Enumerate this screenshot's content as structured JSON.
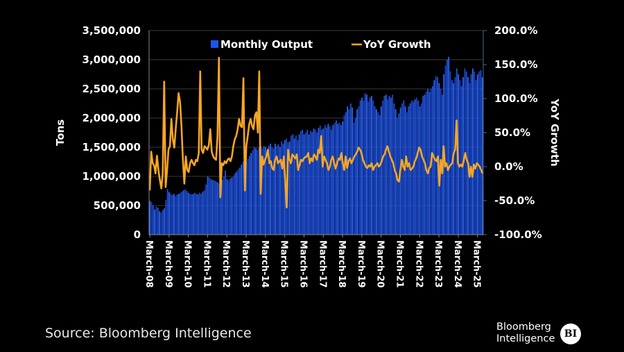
{
  "chart_data": {
    "type": "bar+line",
    "title": "",
    "legend": {
      "placement": "top-center",
      "entries": [
        {
          "name": "Monthly Output",
          "type": "bar",
          "color": "#1a4de0"
        },
        {
          "name": "YoY Growth",
          "type": "line",
          "color": "#f5a623"
        }
      ]
    },
    "left_axis": {
      "label": "Tons",
      "range": [
        0,
        3500000
      ],
      "ticks": [
        0,
        500000,
        1000000,
        1500000,
        2000000,
        2500000,
        3000000,
        3500000
      ],
      "tick_labels": [
        "0",
        "500,000",
        "1,000,000",
        "1,500,000",
        "2,000,000",
        "2,500,000",
        "3,000,000",
        "3,500,000"
      ]
    },
    "right_axis": {
      "label": "YoY Growth",
      "range": [
        -100,
        200
      ],
      "ticks": [
        -100,
        -50,
        0,
        50,
        100,
        150,
        200
      ],
      "tick_labels": [
        "-100.0%",
        "-50.0%",
        "0.0%",
        "50.0%",
        "100.0%",
        "150.0%",
        "200.0%"
      ]
    },
    "x_axis": {
      "label": "",
      "start": "March-08",
      "frequency": "monthly",
      "tick_labels": [
        "March-08",
        "March-09",
        "March-10",
        "March-11",
        "March-12",
        "March-13",
        "March-14",
        "March-15",
        "March-16",
        "March-17",
        "March-18",
        "March-19",
        "March-20",
        "March-21",
        "March-22",
        "March-23",
        "March-24",
        "March-25"
      ]
    },
    "grid": true,
    "series": [
      {
        "name": "Monthly Output",
        "unit": "tons",
        "values": [
          580000,
          560000,
          500000,
          430000,
          480000,
          460000,
          400000,
          380000,
          420000,
          450000,
          600000,
          780000,
          730000,
          700000,
          680000,
          700000,
          660000,
          690000,
          700000,
          720000,
          740000,
          760000,
          780000,
          750000,
          720000,
          700000,
          690000,
          700000,
          720000,
          700000,
          690000,
          720000,
          700000,
          740000,
          760000,
          860000,
          1000000,
          980000,
          950000,
          940000,
          930000,
          920000,
          900000,
          880000,
          860000,
          940000,
          1000000,
          1100000,
          950000,
          930000,
          960000,
          980000,
          1000000,
          1050000,
          1080000,
          1120000,
          1150000,
          1200000,
          1250000,
          1300000,
          1250000,
          1300000,
          1350000,
          1400000,
          1450000,
          1500000,
          1480000,
          1450000,
          1500000,
          1520000,
          1480000,
          1520000,
          1500000,
          1450000,
          1520000,
          1560000,
          1500000,
          1480000,
          1560000,
          1520000,
          1550000,
          1500000,
          1600000,
          1560000,
          1620000,
          1650000,
          1580000,
          1600000,
          1700000,
          1720000,
          1650000,
          1700000,
          1620000,
          1720000,
          1780000,
          1800000,
          1720000,
          1750000,
          1800000,
          1720000,
          1780000,
          1760000,
          1820000,
          1800000,
          1750000,
          1830000,
          1870000,
          1800000,
          1820000,
          1880000,
          1840000,
          1900000,
          1860000,
          1800000,
          1880000,
          1920000,
          1960000,
          1900000,
          1920000,
          1880000,
          1940000,
          2050000,
          2100000,
          2200000,
          2150000,
          2250000,
          2180000,
          1920000,
          2000000,
          2150000,
          2200000,
          2300000,
          2350000,
          2300000,
          2420000,
          2400000,
          2280000,
          2350000,
          2380000,
          2300000,
          2200000,
          2150000,
          2100000,
          2050000,
          2200000,
          2300000,
          2380000,
          2400000,
          2320000,
          2380000,
          2350000,
          2400000,
          2250000,
          2150000,
          2000000,
          2080000,
          2180000,
          2250000,
          2300000,
          2200000,
          2100000,
          2200000,
          2250000,
          2300000,
          2280000,
          2320000,
          2350000,
          2300000,
          2200000,
          2250000,
          2380000,
          2400000,
          2450000,
          2500000,
          2450000,
          2500000,
          2550000,
          2650000,
          2720000,
          2700000,
          2600000,
          2500000,
          2400000,
          2750000,
          2900000,
          3000000,
          3050000,
          2800000,
          2650000,
          2600000,
          2700000,
          2850000,
          2750000,
          2650000,
          2550000,
          2700000,
          2850000,
          2800000,
          2700000,
          2600000,
          2750000,
          2850000,
          2800000,
          2650000,
          2750000,
          2800000,
          2820000,
          2700000
        ]
      },
      {
        "name": "YoY Growth",
        "unit": "%",
        "values": [
          -35,
          22,
          5,
          2,
          -10,
          16,
          -5,
          -20,
          -32,
          -10,
          125,
          -30,
          -5,
          25,
          30,
          70,
          40,
          28,
          55,
          80,
          108,
          95,
          60,
          10,
          -25,
          15,
          -5,
          -8,
          5,
          10,
          5,
          2,
          10,
          8,
          20,
          140,
          25,
          20,
          30,
          28,
          25,
          32,
          55,
          22,
          15,
          12,
          10,
          45,
          160,
          -45,
          5,
          2,
          8,
          5,
          10,
          12,
          8,
          15,
          30,
          40,
          45,
          55,
          70,
          60,
          58,
          130,
          -35,
          30,
          45,
          62,
          70,
          60,
          55,
          75,
          80,
          50,
          140,
          -40,
          15,
          3,
          10,
          15,
          25,
          5,
          8,
          -2,
          -5,
          10,
          15,
          5,
          8,
          10,
          -3,
          15,
          -20,
          -60,
          25,
          10,
          5,
          18,
          15,
          12,
          18,
          -5,
          2,
          10,
          8,
          12,
          14,
          15,
          20,
          5,
          12,
          8,
          18,
          15,
          10,
          25,
          20,
          45,
          0,
          15,
          10,
          5,
          -5,
          0,
          10,
          15,
          5,
          -3,
          5,
          12,
          10,
          20,
          5,
          -5,
          15,
          -2,
          8,
          12,
          5,
          10,
          15,
          18,
          22,
          28,
          25,
          20,
          10,
          5,
          0,
          -2,
          2,
          0,
          5,
          -5,
          0,
          2,
          5,
          0,
          3,
          8,
          15,
          18,
          25,
          30,
          22,
          15,
          10,
          5,
          -5,
          -10,
          -20,
          -22,
          -5,
          10,
          0,
          -5,
          15,
          0,
          5,
          -5,
          -3,
          0,
          8,
          12,
          20,
          28,
          25,
          15,
          10,
          5,
          -5,
          -10,
          -2,
          0,
          20,
          15,
          10,
          8,
          15,
          -28,
          10,
          -10,
          30,
          0,
          5,
          -5,
          0,
          3,
          5,
          20,
          25,
          68,
          5,
          0,
          3,
          0,
          10,
          20,
          10,
          5,
          -15,
          0,
          -15,
          3,
          -3,
          5,
          3,
          0,
          -5,
          -10
        ]
      }
    ]
  },
  "footer": {
    "source": "Source: Bloomberg Intelligence",
    "brand_line1": "Bloomberg",
    "brand_line2": "Intelligence",
    "brand_badge": "BI"
  }
}
